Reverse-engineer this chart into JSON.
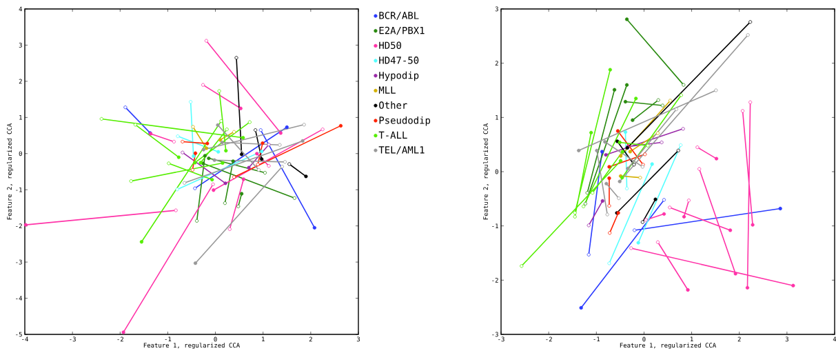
{
  "chart_data": [
    {
      "type": "line",
      "xlabel": "Feature 1, regularized CCA",
      "ylabel": "Feature 2, regularized CCA",
      "xlim": [
        -4,
        3
      ],
      "ylim": [
        -5,
        4
      ],
      "xticks": [
        -4,
        -3,
        -2,
        -1,
        0,
        1,
        2,
        3
      ],
      "yticks": [
        -5,
        -4,
        -3,
        -2,
        -1,
        0,
        1,
        2,
        3,
        4
      ],
      "marker": "circle",
      "legend": "right",
      "series": [
        {
          "name": "BCR/ABL",
          "color": "#2b3bff",
          "x": [
            -1.37,
            -1.89,
            null,
            1.5,
            -0.43,
            null,
            2.08,
            0.95
          ],
          "values": [
            0.57,
            1.28,
            null,
            0.73,
            -0.96,
            null,
            -2.05,
            0.65
          ]
        },
        {
          "name": "E2A/PBX1",
          "color": "#2a8a10",
          "x": [
            -0.22,
            -0.39,
            null,
            0.37,
            0.2,
            null,
            0.55,
            0.48,
            null,
            -0.26,
            1.66,
            null,
            -0.14,
            1.04
          ],
          "values": [
            -0.06,
            -1.86,
            null,
            -0.21,
            -1.37,
            null,
            -1.11,
            -1.46,
            null,
            -0.27,
            -1.23,
            null,
            -0.13,
            -0.53
          ]
        },
        {
          "name": "HD50",
          "color": "#ff33a8",
          "x": [
            0.53,
            -0.26,
            null,
            1.37,
            -0.19,
            null,
            -3.98,
            -0.83,
            null,
            -1.93,
            -0.05,
            null,
            0.59,
            0.3,
            null,
            -0.04,
            2.25,
            null,
            -1.36,
            -0.87,
            null,
            0.87,
            1.12
          ],
          "values": [
            1.25,
            1.9,
            null,
            0.57,
            3.12,
            null,
            -1.97,
            -1.57,
            null,
            -4.94,
            -0.85,
            null,
            -0.71,
            -2.09,
            null,
            -1.01,
            0.67,
            null,
            0.55,
            0.33,
            null,
            0.0,
            -0.34
          ]
        },
        {
          "name": "HD47-50",
          "color": "#55ffff",
          "x": [
            0.06,
            -0.79,
            null,
            -0.46,
            -0.52,
            null,
            0.97,
            -0.8
          ],
          "values": [
            0.05,
            0.48,
            null,
            -0.07,
            1.43,
            null,
            0.06,
            -0.99
          ]
        },
        {
          "name": "Hypodip",
          "color": "#9a2aa8",
          "x": [
            0.21,
            -0.69,
            null,
            0.7,
            1.12
          ],
          "values": [
            -0.82,
            0.03,
            null,
            -0.39,
            0.25
          ]
        },
        {
          "name": "MLL",
          "color": "#d4b000",
          "x": [
            -0.19,
            -0.47,
            null,
            0.1,
            0.39
          ],
          "values": [
            0.15,
            0.74,
            null,
            0.38,
            0.6
          ]
        },
        {
          "name": "Other",
          "color": "#000000",
          "x": [
            0.55,
            0.44,
            null,
            0.97,
            0.84,
            null,
            1.9,
            1.55
          ],
          "values": [
            -0.02,
            2.65,
            null,
            -0.15,
            0.65,
            null,
            -0.63,
            -0.29
          ]
        },
        {
          "name": "Pseudodip",
          "color": "#ff2200",
          "x": [
            2.63,
            0.39,
            null,
            -0.42,
            -0.48,
            null,
            -0.17,
            -0.69,
            null,
            0.99,
            0.89
          ],
          "values": [
            0.77,
            -0.65,
            null,
            0.01,
            -0.45,
            null,
            0.28,
            0.33,
            null,
            0.29,
            -0.3
          ]
        },
        {
          "name": "T-ALL",
          "color": "#55ee00",
          "x": [
            -1.55,
            0.12,
            null,
            -0.07,
            -0.98,
            null,
            -0.77,
            -1.68,
            null,
            0.58,
            -2.39,
            null,
            -0.43,
            0.72,
            null,
            0.22,
            0.08,
            null,
            0.15,
            -1.77,
            null,
            -0.31,
            0.24
          ],
          "values": [
            -2.44,
            0.9,
            null,
            -0.72,
            -0.27,
            null,
            -0.1,
            0.8,
            null,
            0.44,
            0.96,
            null,
            -0.25,
            0.87,
            null,
            0.08,
            1.73,
            null,
            -0.26,
            -0.76,
            null,
            -0.25,
            0.67
          ]
        },
        {
          "name": "TEL/AML1",
          "color": "#999999",
          "x": [
            -0.42,
            1.4,
            null,
            -0.25,
            1.86,
            null,
            0.05,
            0.91,
            null,
            -0.02,
            1.46,
            null,
            0.14,
            1.35,
            null,
            1.83,
            -0.65
          ],
          "values": [
            -3.03,
            -0.36,
            null,
            0.11,
            0.8,
            null,
            0.79,
            -0.45,
            null,
            -0.18,
            -0.23,
            null,
            0.31,
            0.24,
            null,
            0.35,
            -0.81
          ]
        }
      ]
    },
    {
      "type": "line",
      "xlabel": "Feature 1, regularized CCA",
      "ylabel": "Feature 2, regularized CCA",
      "xlim": [
        -3,
        4
      ],
      "ylim": [
        -3,
        3
      ],
      "xticks": [
        -3,
        -2,
        -1,
        0,
        1,
        2,
        3,
        4
      ],
      "yticks": [
        -3,
        -2,
        -1,
        0,
        1,
        2,
        3
      ],
      "marker": "circle",
      "series": [
        {
          "color": "#2b3bff",
          "x": [
            -1.32,
            0.42,
            null,
            2.86,
            -0.2,
            null,
            -0.88,
            -1.16
          ],
          "values": [
            -2.51,
            -0.52,
            null,
            -0.68,
            -1.08,
            null,
            0.37,
            -1.53
          ]
        },
        {
          "color": "#2a8a10",
          "x": [
            -0.36,
            0.83,
            null,
            -0.36,
            -1.23,
            null,
            -0.62,
            -1.19,
            null,
            -0.39,
            0.39,
            null,
            -0.24,
            0.3
          ],
          "values": [
            2.81,
            1.6,
            null,
            1.6,
            -0.59,
            null,
            1.51,
            -0.39,
            null,
            1.29,
            1.22,
            null,
            0.95,
            1.32
          ]
        },
        {
          "color": "#ff33a8",
          "x": [
            3.13,
            -0.27,
            null,
            0.92,
            0.29,
            null,
            1.92,
            1.16,
            null,
            2.17,
            2.23,
            null,
            2.28,
            2.07,
            null,
            1.81,
            0.54,
            null,
            1.52,
            1.12,
            null,
            0.84,
            0.94,
            null,
            0.42,
            0.04
          ],
          "values": [
            -2.1,
            -1.41,
            null,
            -2.18,
            -1.3,
            null,
            -1.88,
            0.05,
            null,
            -2.14,
            1.28,
            null,
            -0.98,
            1.12,
            null,
            -1.08,
            -0.66,
            null,
            0.24,
            0.45,
            null,
            -0.83,
            -0.53,
            null,
            -0.78,
            -0.89
          ]
        },
        {
          "color": "#55ffff",
          "x": [
            -0.12,
            0.77,
            null,
            0.17,
            -0.73,
            null,
            -0.39,
            -0.36
          ],
          "values": [
            -1.31,
            0.49,
            null,
            0.14,
            -1.69,
            null,
            0.73,
            -0.31
          ]
        },
        {
          "color": "#9a2aa8",
          "x": [
            -0.8,
            0.82,
            null,
            -0.87,
            -1.16,
            null,
            -0.34,
            0.37
          ],
          "values": [
            0.31,
            0.79,
            null,
            -0.54,
            -0.99,
            null,
            0.46,
            0.54
          ]
        },
        {
          "color": "#d4b000",
          "x": [
            -0.49,
            0.55,
            null,
            -0.29,
            0.29,
            null,
            -0.49,
            -0.08
          ],
          "values": [
            0.29,
            1.31,
            null,
            0.37,
            0.71,
            null,
            -0.08,
            -0.11
          ]
        },
        {
          "color": "#000000",
          "x": [
            -0.35,
            2.23,
            null,
            -0.57,
            0.72,
            null,
            0.24,
            -0.03,
            null,
            -0.56,
            -0.21
          ],
          "values": [
            0.44,
            2.76,
            null,
            -0.76,
            0.39,
            null,
            -0.51,
            -0.93,
            null,
            0.56,
            0.13
          ]
        },
        {
          "color": "#ff2200",
          "x": [
            -0.54,
            -0.72,
            null,
            -0.55,
            -0.02,
            null,
            -0.73,
            -0.73,
            null,
            -0.73,
            0.02
          ],
          "values": [
            -0.76,
            -1.13,
            null,
            0.75,
            0.13,
            null,
            -0.12,
            -0.63,
            null,
            0.09,
            0.32
          ]
        },
        {
          "color": "#55ee00",
          "x": [
            -0.71,
            -1.45,
            null,
            -1.11,
            -1.45,
            null,
            -0.17,
            -1.27,
            null,
            -0.49,
            -2.57,
            null,
            -0.46,
            0.78,
            null,
            -0.51,
            0.08,
            null,
            -0.45,
            -1.08
          ],
          "values": [
            1.88,
            -0.76,
            null,
            0.72,
            -0.83,
            null,
            1.35,
            -0.64,
            null,
            0.2,
            -1.74,
            null,
            -0.11,
            1.41,
            null,
            0.54,
            0.48,
            null,
            0.37,
            -0.39
          ]
        },
        {
          "color": "#999999",
          "x": [
            -1.37,
            1.51,
            null,
            -0.99,
            -0.77,
            null,
            -0.82,
            -0.03,
            null,
            -0.51,
            2.18,
            null,
            -0.34,
            0.68,
            null,
            -0.79,
            -0.53
          ],
          "values": [
            0.39,
            1.5,
            null,
            0.39,
            -0.79,
            null,
            0.55,
            0.09,
            null,
            -0.18,
            2.52,
            null,
            0.06,
            1.15,
            null,
            -0.22,
            -0.49
          ]
        }
      ]
    }
  ]
}
